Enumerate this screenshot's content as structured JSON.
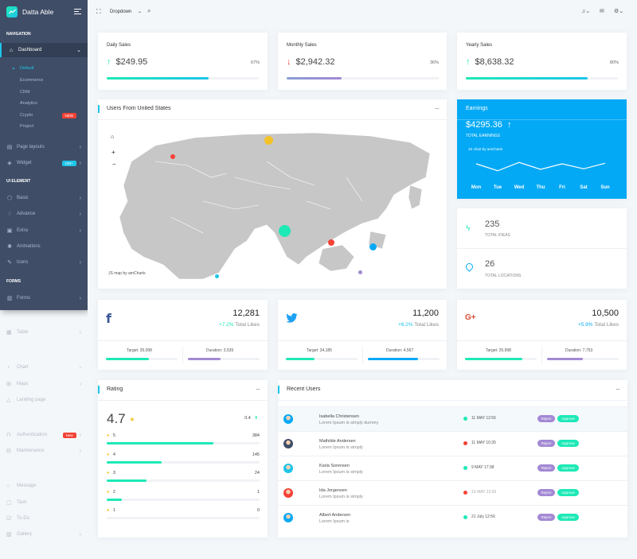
{
  "app": {
    "title": "Datta Able"
  },
  "sidebar": {
    "nav_heading": "NAVIGATION",
    "ui_heading": "UI ELEMENT",
    "forms_heading": "FORMS",
    "dashboard": "Dashboard",
    "sub_items": [
      "Default",
      "Ecommerce",
      "CRM",
      "Analytics",
      "Crypto",
      "Project"
    ],
    "crypto_badge": "NEW",
    "page_layouts": "Page layouts",
    "widget": "Widget",
    "widget_badge": "100+",
    "basic": "Basic",
    "advance": "Advance",
    "extra": "Extra",
    "animations": "Animations",
    "icons": "Icons",
    "forms": "Forms",
    "table": "Table",
    "chart": "Chart",
    "maps": "Maps",
    "landing": "Landing page",
    "authentication": "Authentication",
    "auth_badge": "New",
    "maintenance": "Maintenance",
    "message": "Message",
    "task": "Task",
    "todo": "To-Do",
    "gallery": "Gallery"
  },
  "topbar": {
    "dropdown": "Dropdown"
  },
  "stats": [
    {
      "title": "Daily Sales",
      "value": "$249.95",
      "pct": "67%",
      "progress": 0.67,
      "dir": "up"
    },
    {
      "title": "Monthly Sales",
      "value": "$2,942.32",
      "pct": "36%",
      "progress": 0.36,
      "dir": "down"
    },
    {
      "title": "Yearly Sales",
      "value": "$8,638.32",
      "pct": "80%",
      "progress": 0.8,
      "dir": "up"
    }
  ],
  "map_card": {
    "title": "Users From United States",
    "credit": "JS map by amCharts"
  },
  "earnings": {
    "title": "Earnings",
    "value": "$4295.36",
    "label": "TOTAL EARNINGS",
    "credit": "JS chart by amCharts",
    "chart_data": {
      "type": "line",
      "categories": [
        "Mon",
        "Tue",
        "Wed",
        "Thu",
        "Fri",
        "Sat",
        "Sun"
      ],
      "series": [
        {
          "values": [
            60,
            35,
            65,
            40,
            60,
            42,
            62
          ]
        }
      ]
    }
  },
  "ideas": {
    "value": "235",
    "label": "TOTAL IDEAS"
  },
  "locations": {
    "value": "26",
    "label": "TOTAL LOCATIONS"
  },
  "social": [
    {
      "value": "12,281",
      "change": "+7.2%",
      "label": "Total Likes",
      "target": "Target: 35,098",
      "duration": "Duration: 3,539",
      "target_p": 0.6,
      "duration_p": 0.45
    },
    {
      "value": "11,200",
      "change": "+6.2%",
      "label": "Total Likes",
      "target": "Target: 34,185",
      "duration": "Duration: 4,567",
      "target_p": 0.4,
      "duration_p": 0.7
    },
    {
      "value": "10,500",
      "change": "+5.9%",
      "label": "Total Likes",
      "target": "Target: 25,998",
      "duration": "Duration: 7,753",
      "target_p": 0.8,
      "duration_p": 0.5
    }
  ],
  "rating": {
    "title": "Rating",
    "score": "4.7",
    "change": "0.4",
    "rows": [
      {
        "star": "5",
        "count": "384",
        "p": 0.7
      },
      {
        "star": "4",
        "count": "145",
        "p": 0.36
      },
      {
        "star": "3",
        "count": "24",
        "p": 0.26
      },
      {
        "star": "2",
        "count": "1",
        "p": 0.1
      },
      {
        "star": "1",
        "count": "0",
        "p": 0
      }
    ]
  },
  "recent": {
    "title": "Recent Users",
    "reject": "Reject",
    "approve": "Approve",
    "users": [
      {
        "name": "Isabella Christensen",
        "desc": "Lorem Ipsum is simply dummy",
        "date": "11 MAY 12:56",
        "status": "green"
      },
      {
        "name": "Mathilde Andersen",
        "desc": "Lorem Ipsum is simply",
        "date": "11 MAY 10:35",
        "status": "red"
      },
      {
        "name": "Karla Sorensen",
        "desc": "Lorem Ipsum is simply",
        "date": "9 MAY 17:38",
        "status": "green"
      },
      {
        "name": "Ida Jorgensen",
        "desc": "Lorem Ipsum is simply",
        "date": "19 MAY 12:56",
        "status": "red"
      },
      {
        "name": "Albert Andersen",
        "desc": "Lorem Ipsum is",
        "date": "21 July 12:56",
        "status": "green"
      }
    ]
  },
  "colors": {
    "green": "#1de9b6",
    "red": "#f44236",
    "blue": "#04a9f5",
    "purple": "#a389d4",
    "sidebar": "#3f4d67"
  }
}
